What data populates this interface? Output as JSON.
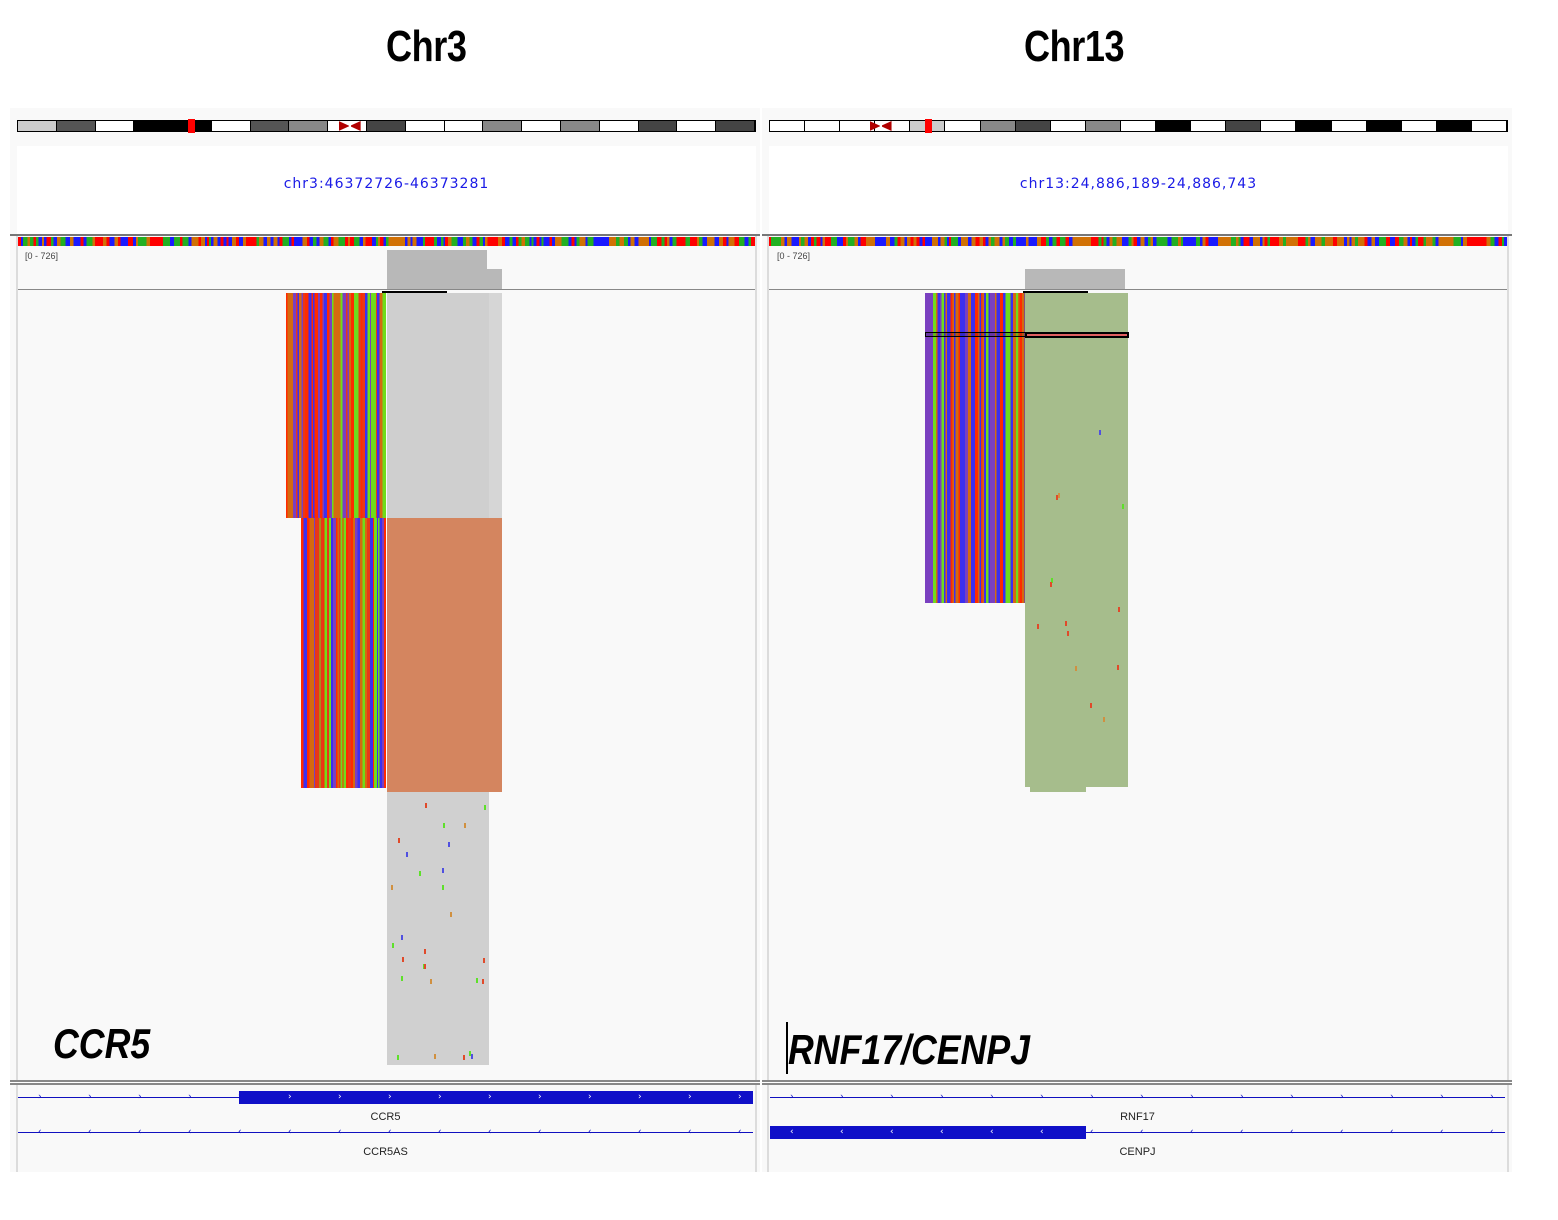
{
  "titles": {
    "left": "Chr3",
    "right": "Chr13"
  },
  "panels": [
    {
      "id": "chr3",
      "locus": "chr3:46372726-46373281",
      "range_label": "[0 - 726]",
      "annotation_label": "CCR5",
      "ideogram": {
        "bands": [
          "#ccc",
          "#555",
          "#fff",
          "#000",
          "#000",
          "#fff",
          "#555",
          "#888",
          "#fff",
          "#444",
          "#fff",
          "#fff",
          "#888",
          "#fff",
          "#888",
          "#fff",
          "#444",
          "#fff",
          "#444"
        ],
        "centromere_pct": 45,
        "roi_pct": 23
      },
      "genes": [
        {
          "name": "CCR5",
          "strand": "+",
          "thick_start_pct": 30,
          "thick_end_pct": 100
        },
        {
          "name": "CCR5AS",
          "strand": "-",
          "thick_start_pct": null,
          "thick_end_pct": null
        }
      ],
      "colors": {
        "aligned_block": "#d4855f",
        "grey_reads": "#d0d0d0",
        "coverage": "#b8b8b8"
      }
    },
    {
      "id": "chr13",
      "locus": "chr13:24,886,189-24,886,743",
      "range_label": "[0 - 726]",
      "annotation_label": "RNF17/CENPJ",
      "ideogram": {
        "bands": [
          "#fff",
          "#fff",
          "#fff",
          "#fff",
          "#ccc",
          "#fff",
          "#888",
          "#444",
          "#fff",
          "#888",
          "#fff",
          "#000",
          "#fff",
          "#444",
          "#fff",
          "#000",
          "#fff",
          "#000",
          "#fff",
          "#000",
          "#fff"
        ],
        "centromere_pct": 15,
        "roi_pct": 21
      },
      "genes": [
        {
          "name": "RNF17",
          "strand": "+",
          "thick_start_pct": null,
          "thick_end_pct": null
        },
        {
          "name": "CENPJ",
          "strand": "-",
          "thick_start_pct": 0,
          "thick_end_pct": 43
        }
      ],
      "colors": {
        "aligned_block": "#a6bd8c",
        "grey_reads": "#d0d0d0",
        "coverage": "#b8b8b8"
      }
    }
  ],
  "track_colors": {
    "A": "#22b022",
    "C": "#1a1aff",
    "G": "#d17105",
    "T": "#ff0000",
    "gene": "#1010c8",
    "locus_text": "#1a1ae6"
  }
}
